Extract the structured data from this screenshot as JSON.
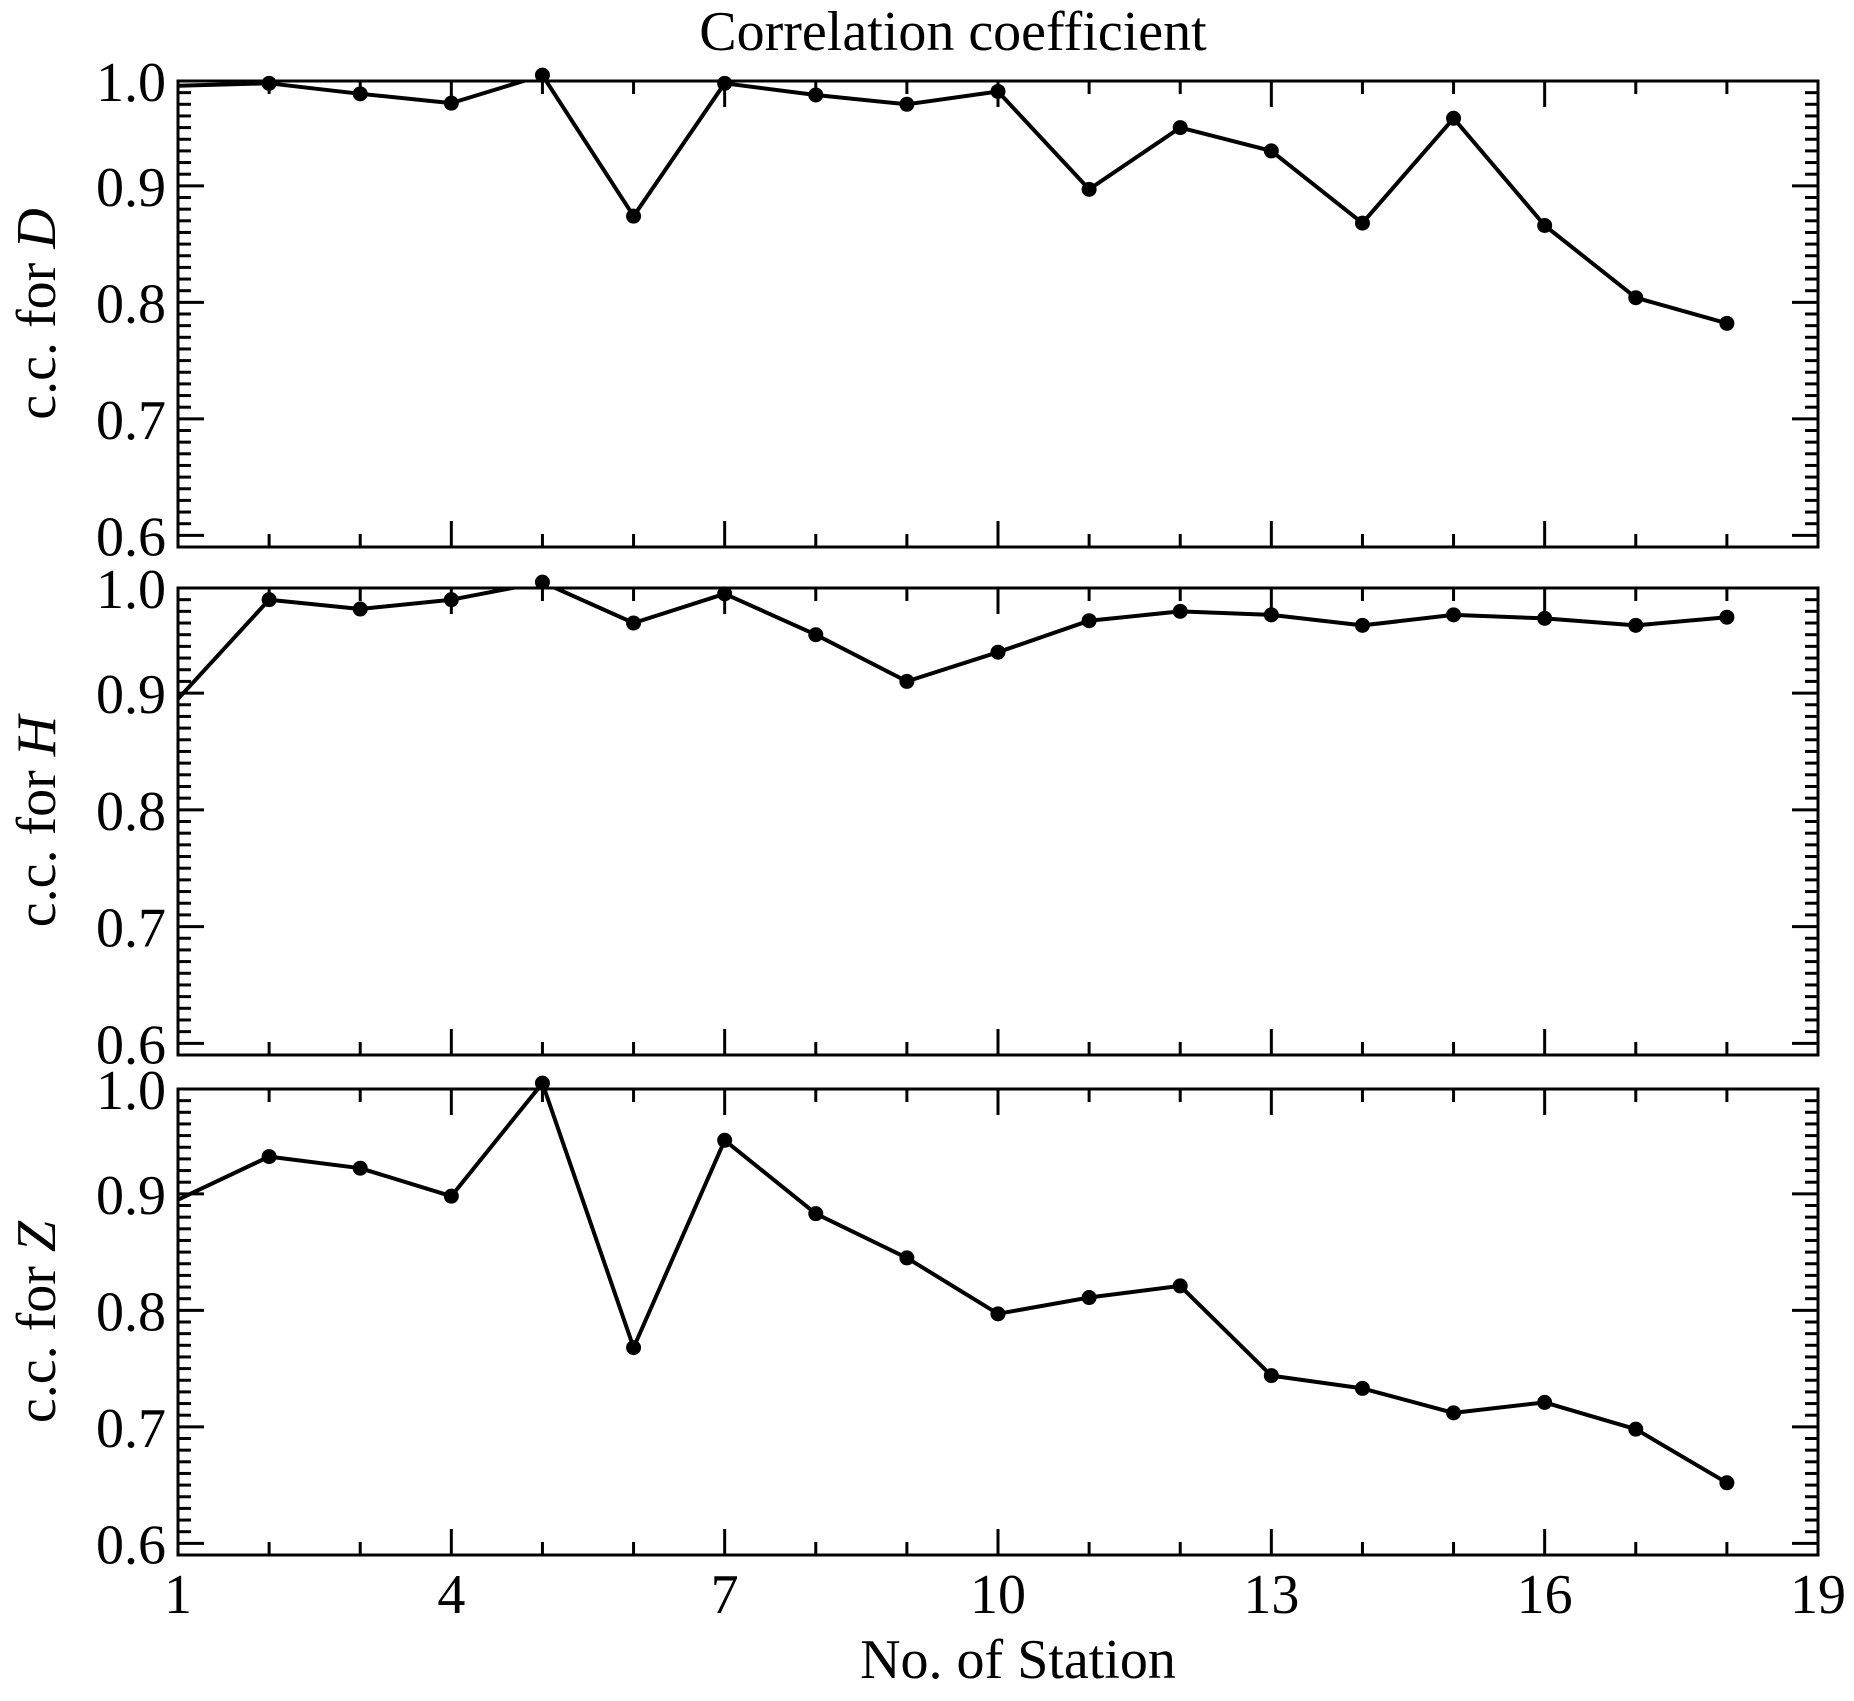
{
  "title": "Correlation coefficient",
  "xlabel": "No. of Station",
  "colors": {
    "line": "#000000",
    "marker": "#000000",
    "frame": "#000000"
  },
  "chart_data": [
    {
      "type": "line",
      "ylabel_prefix": "c.c. for ",
      "ylabel_symbol": "D",
      "xlim": [
        1,
        19
      ],
      "ylim": [
        0.59,
        0.99
      ],
      "yticks": [
        "1.0",
        "0.9",
        "0.8",
        "0.7",
        "0.6"
      ],
      "ytick_values": [
        0.99,
        0.9,
        0.8,
        0.7,
        0.6
      ],
      "x": [
        1,
        2,
        3,
        4,
        5,
        6,
        7,
        8,
        9,
        10,
        11,
        12,
        13,
        14,
        15,
        16,
        17,
        18
      ],
      "y": [
        0.986,
        0.988,
        0.979,
        0.971,
        0.995,
        0.874,
        0.988,
        0.978,
        0.97,
        0.981,
        0.897,
        0.95,
        0.93,
        0.868,
        0.958,
        0.866,
        0.804,
        0.782
      ],
      "markers_from_index": 1,
      "grid": false
    },
    {
      "type": "line",
      "ylabel_prefix": "c.c. for ",
      "ylabel_symbol": "H",
      "xlim": [
        1,
        19
      ],
      "ylim": [
        0.59,
        0.99
      ],
      "yticks": [
        "1.0",
        "0.9",
        "0.8",
        "0.7",
        "0.6"
      ],
      "ytick_values": [
        0.99,
        0.9,
        0.8,
        0.7,
        0.6
      ],
      "x": [
        1,
        2,
        3,
        4,
        5,
        6,
        7,
        8,
        9,
        10,
        11,
        12,
        13,
        14,
        15,
        16,
        17,
        18
      ],
      "y": [
        0.895,
        0.98,
        0.972,
        0.98,
        0.995,
        0.96,
        0.985,
        0.95,
        0.91,
        0.935,
        0.962,
        0.97,
        0.967,
        0.958,
        0.967,
        0.964,
        0.958,
        0.965
      ],
      "markers_from_index": 1,
      "grid": false
    },
    {
      "type": "line",
      "ylabel_prefix": "c.c. for ",
      "ylabel_symbol": "Z",
      "xlim": [
        1,
        19
      ],
      "ylim": [
        0.59,
        0.99
      ],
      "yticks": [
        "1.0",
        "0.9",
        "0.8",
        "0.7",
        "0.6"
      ],
      "ytick_values": [
        0.99,
        0.9,
        0.8,
        0.7,
        0.6
      ],
      "x": [
        1,
        2,
        3,
        4,
        5,
        6,
        7,
        8,
        9,
        10,
        11,
        12,
        13,
        14,
        15,
        16,
        17,
        18
      ],
      "y": [
        0.895,
        0.932,
        0.922,
        0.898,
        0.995,
        0.768,
        0.946,
        0.883,
        0.845,
        0.797,
        0.811,
        0.821,
        0.744,
        0.733,
        0.712,
        0.721,
        0.698,
        0.652
      ],
      "markers_from_index": 1,
      "grid": false
    }
  ],
  "xticks": [
    "1",
    "4",
    "7",
    "10",
    "13",
    "16",
    "19"
  ],
  "xtick_values": [
    1,
    4,
    7,
    10,
    13,
    16,
    19
  ],
  "xminor_step": 1
}
